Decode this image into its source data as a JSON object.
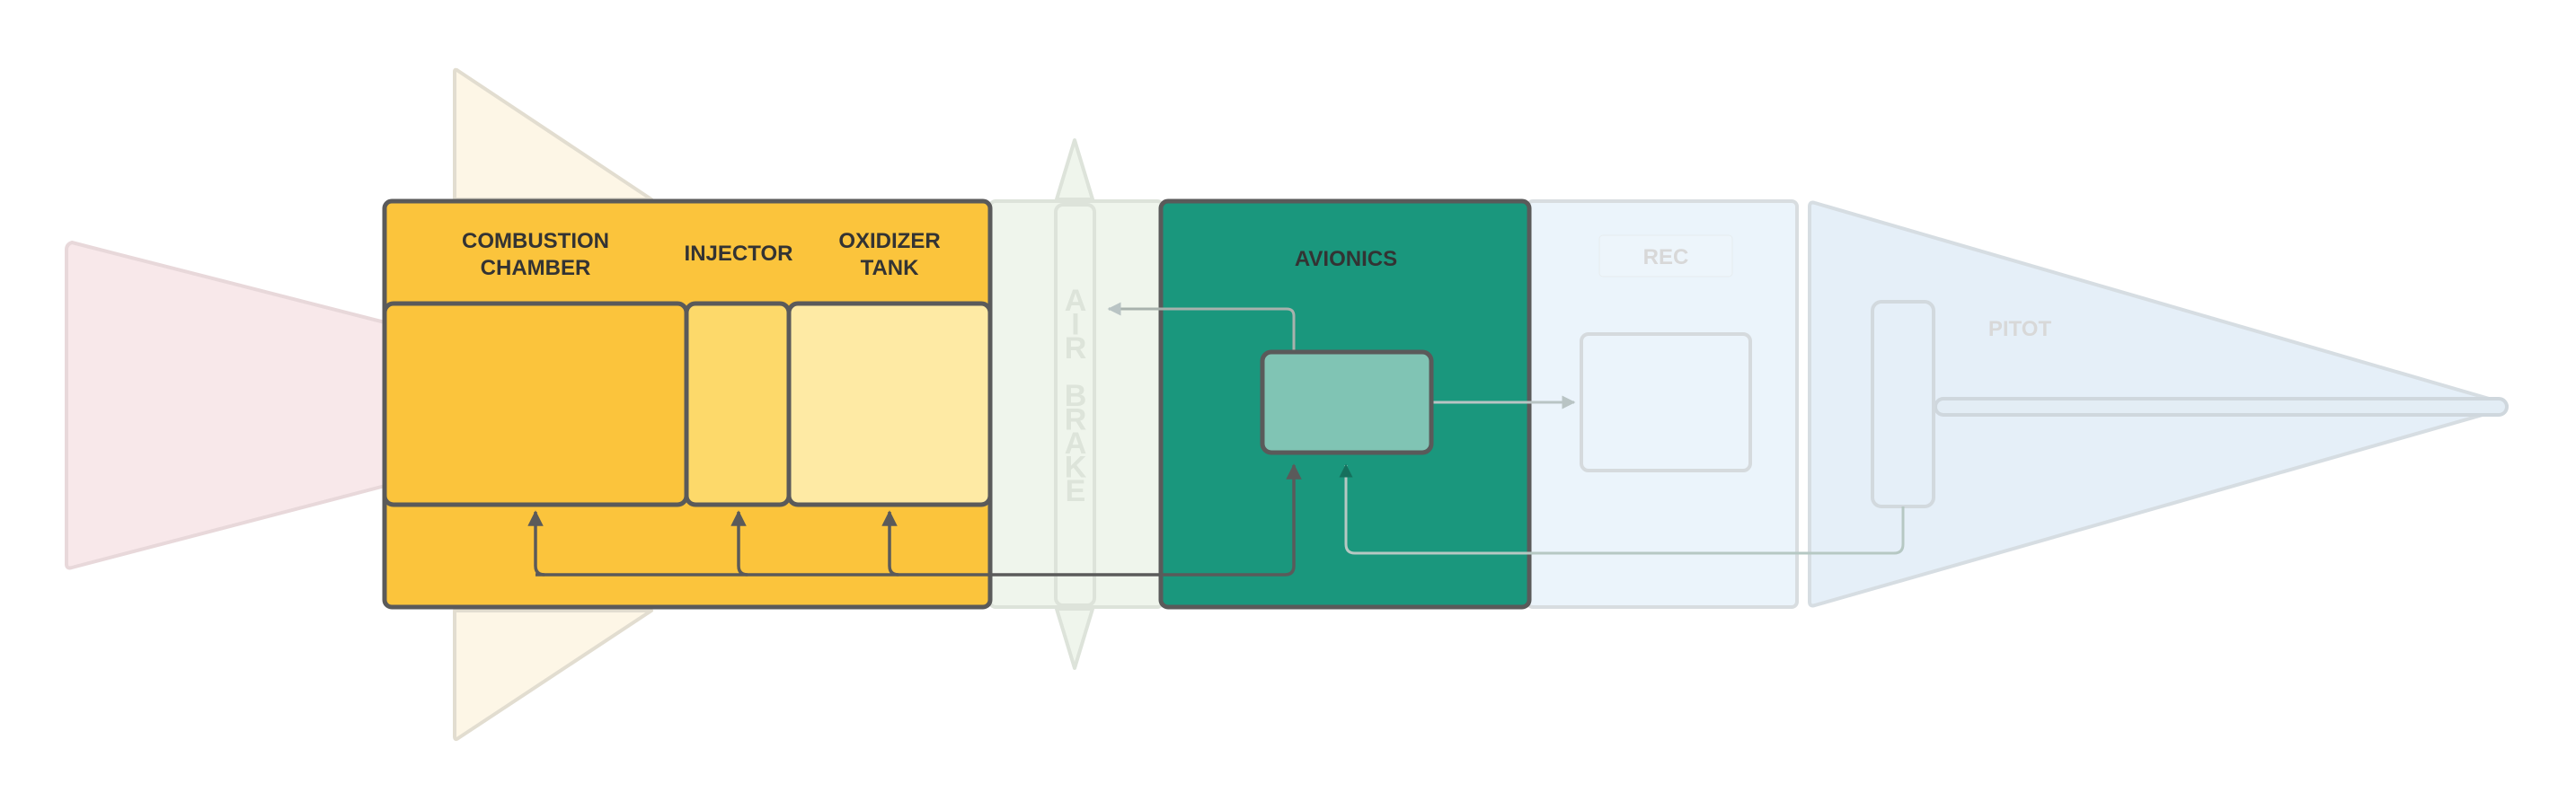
{
  "labels": {
    "combustion_chamber_line1": "COMBUSTION",
    "combustion_chamber_line2": "CHAMBER",
    "injector": "INJECTOR",
    "oxidizer_tank_line1": "OXIDIZER",
    "oxidizer_tank_line2": "TANK",
    "avionics": "AVIONICS",
    "rec": "REC",
    "pitot": "PITOT",
    "air_brake_letters": [
      "A",
      "I",
      "R",
      "",
      "B",
      "R",
      "A",
      "K",
      "E"
    ]
  },
  "colors": {
    "propulsion_fill": "#fbc43c",
    "injector_fill": "#fdd96a",
    "oxidizer_fill": "#feeaa4",
    "avionics_fill": "#1a977d",
    "avionics_board_fill": "#80c4b4",
    "outline_dark": "#5a5a5a",
    "nozzle_fill": "#f8e8ea",
    "fin_fill": "#fdf6e6",
    "airbrake_fill": "#eff5ec",
    "recovery_fill": "#ebf4fb",
    "nose_fill": "#e5eff8",
    "faded_outline": "#d4d9d6"
  }
}
